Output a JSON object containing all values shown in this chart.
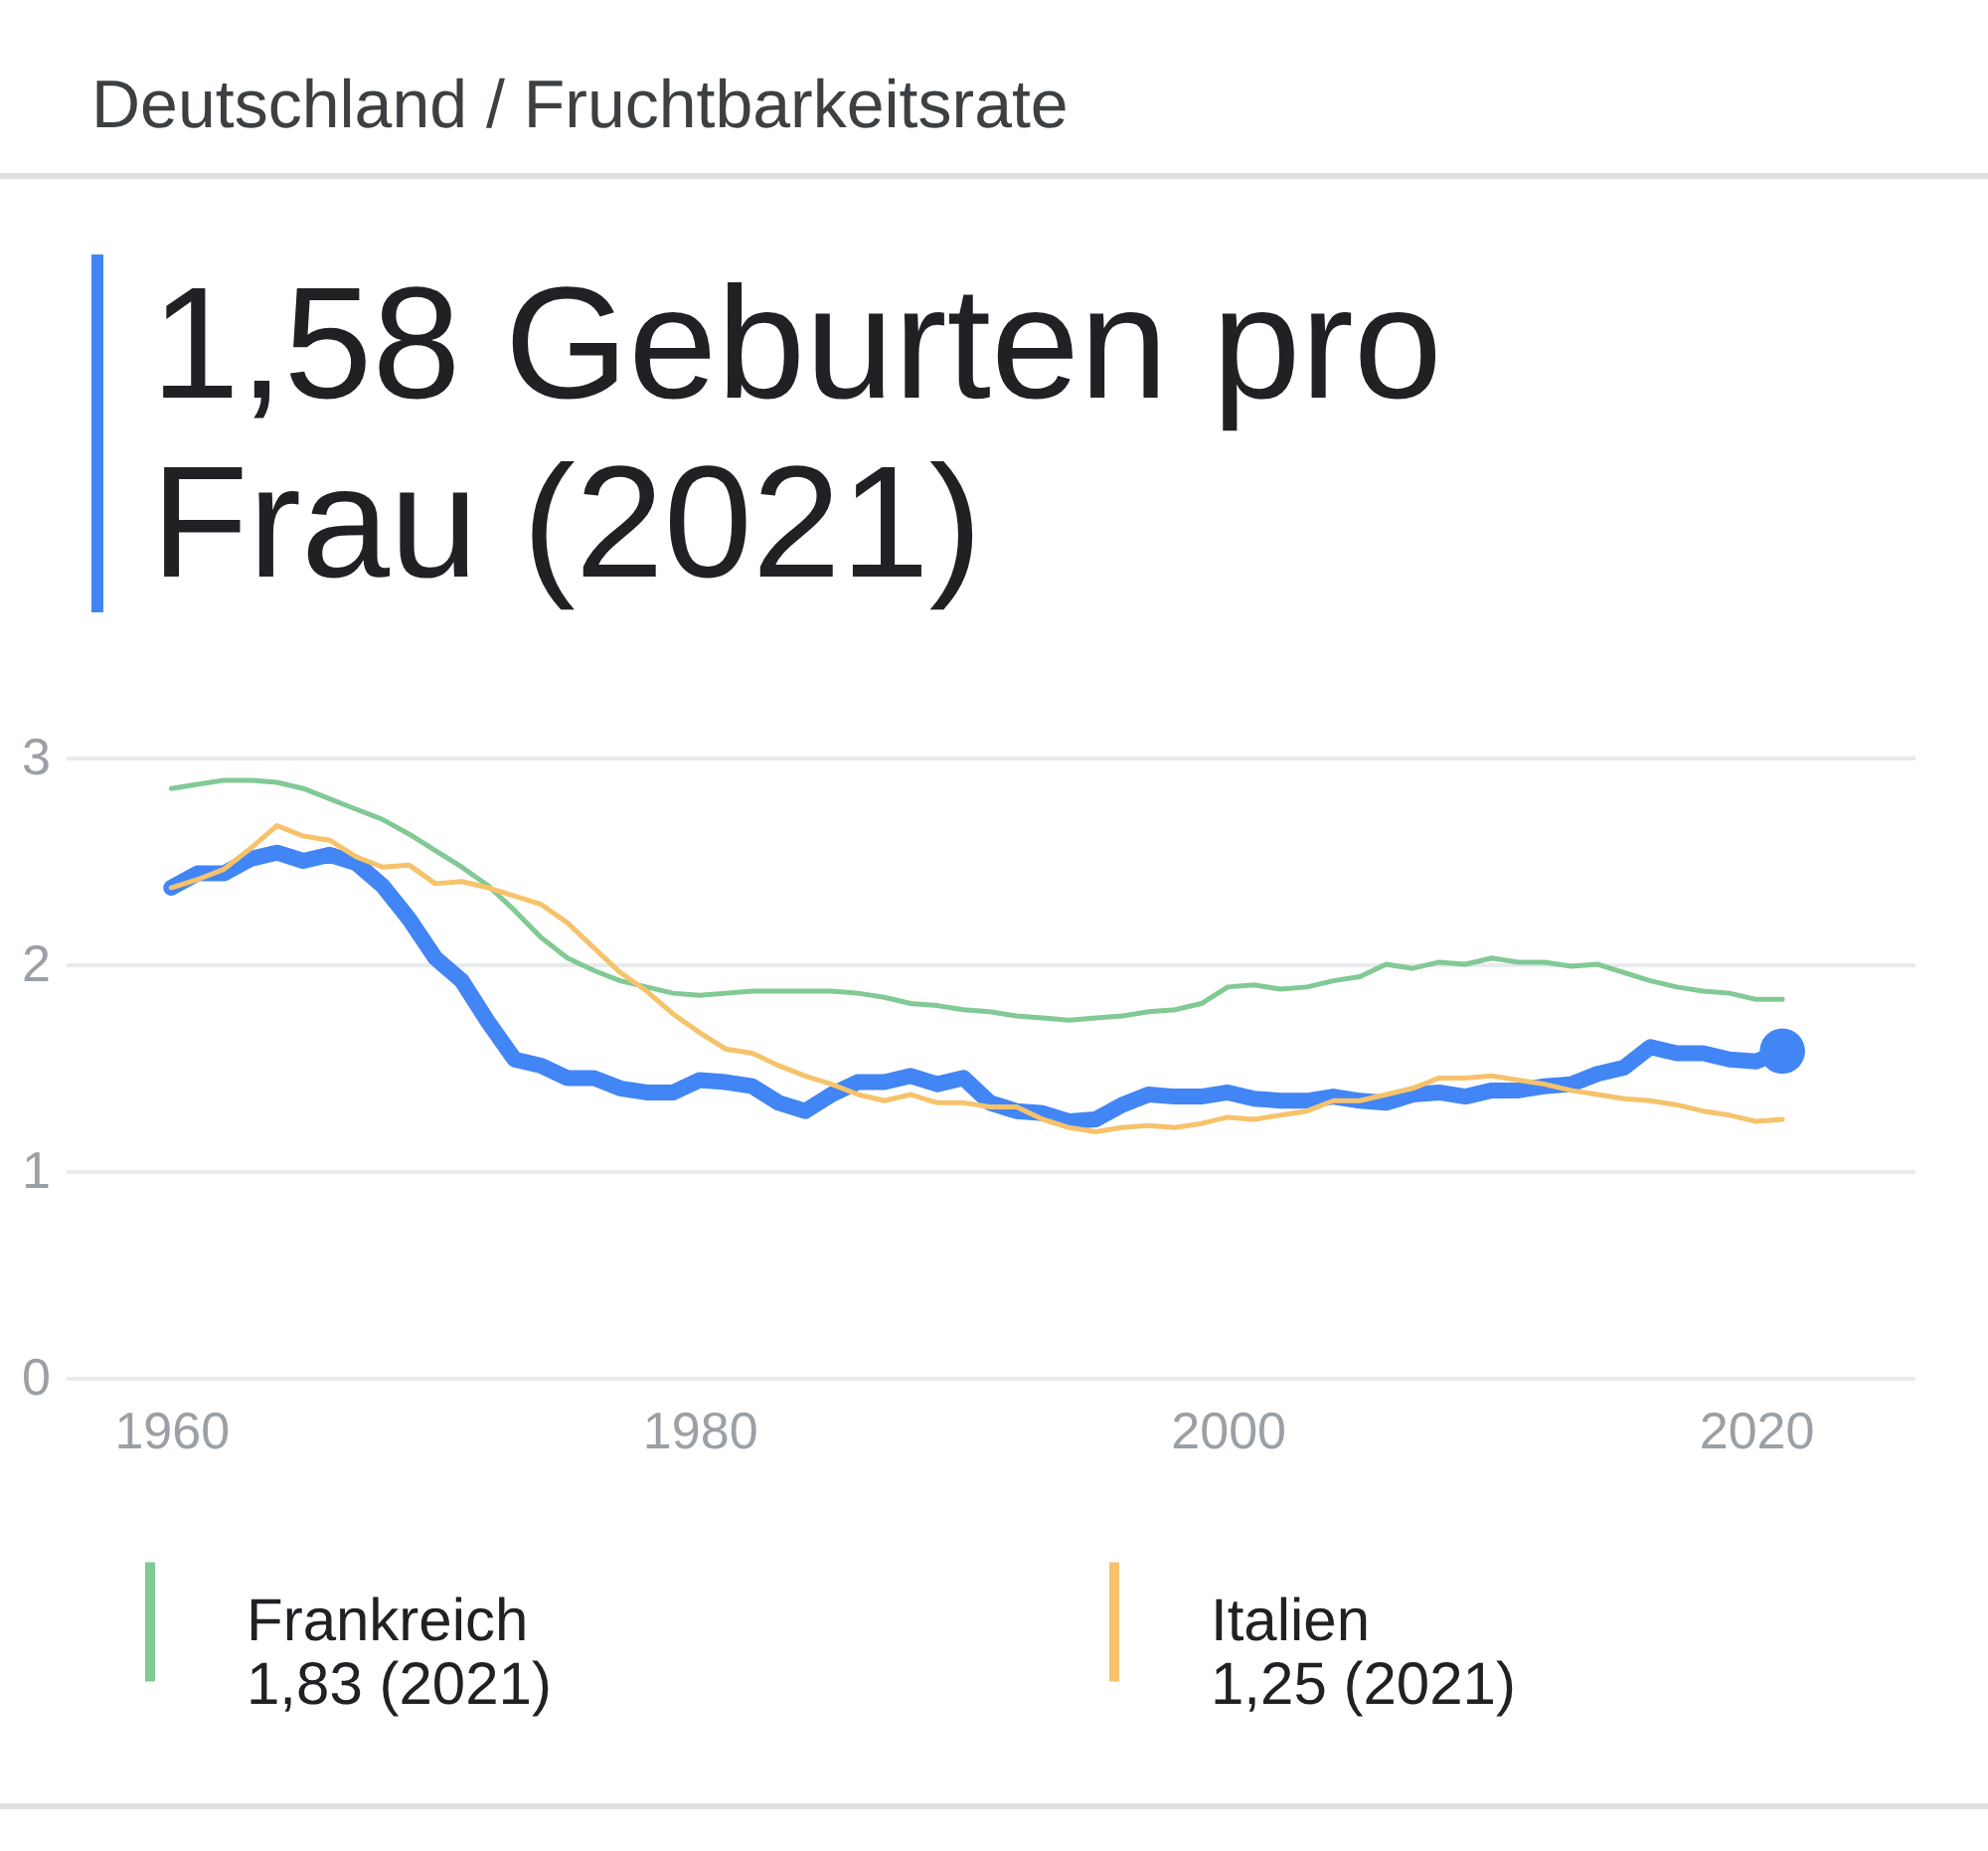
{
  "chart_data": {
    "type": "line",
    "title": "Deutschland / Fruchtbarkeitsrate",
    "subtitle": "1,58 Geburten pro Frau (2021)",
    "annotations": [
      "1,83 (2021)",
      "1,25 (2021)"
    ],
    "x": [
      1960,
      1961,
      1962,
      1963,
      1964,
      1965,
      1966,
      1967,
      1968,
      1969,
      1970,
      1971,
      1972,
      1973,
      1974,
      1975,
      1976,
      1977,
      1978,
      1979,
      1980,
      1981,
      1982,
      1983,
      1984,
      1985,
      1986,
      1987,
      1988,
      1989,
      1990,
      1991,
      1992,
      1993,
      1994,
      1995,
      1996,
      1997,
      1998,
      1999,
      2000,
      2001,
      2002,
      2003,
      2004,
      2005,
      2006,
      2007,
      2008,
      2009,
      2010,
      2011,
      2012,
      2013,
      2014,
      2015,
      2016,
      2017,
      2018,
      2019,
      2020,
      2021
    ],
    "series": [
      {
        "color": "#4285f4",
        "values": [
          2.37,
          2.44,
          2.44,
          2.51,
          2.54,
          2.5,
          2.53,
          2.49,
          2.38,
          2.22,
          2.03,
          1.92,
          1.72,
          1.54,
          1.51,
          1.45,
          1.45,
          1.4,
          1.38,
          1.38,
          1.44,
          1.43,
          1.41,
          1.33,
          1.29,
          1.37,
          1.43,
          1.43,
          1.46,
          1.42,
          1.45,
          1.33,
          1.29,
          1.28,
          1.24,
          1.25,
          1.32,
          1.37,
          1.36,
          1.36,
          1.38,
          1.35,
          1.34,
          1.34,
          1.36,
          1.34,
          1.33,
          1.37,
          1.38,
          1.36,
          1.39,
          1.39,
          1.41,
          1.42,
          1.47,
          1.5,
          1.6,
          1.57,
          1.57,
          1.54,
          1.53,
          1.58
        ]
      },
      {
        "name": "Frankreich",
        "color": "#81c995",
        "values": [
          2.85,
          2.87,
          2.89,
          2.89,
          2.88,
          2.85,
          2.8,
          2.75,
          2.7,
          2.63,
          2.55,
          2.47,
          2.38,
          2.26,
          2.13,
          2.03,
          1.97,
          1.92,
          1.89,
          1.86,
          1.85,
          1.86,
          1.87,
          1.87,
          1.87,
          1.87,
          1.86,
          1.84,
          1.81,
          1.8,
          1.78,
          1.77,
          1.75,
          1.74,
          1.73,
          1.74,
          1.75,
          1.77,
          1.78,
          1.81,
          1.89,
          1.9,
          1.88,
          1.89,
          1.92,
          1.94,
          2.0,
          1.98,
          2.01,
          2.0,
          2.03,
          2.01,
          2.01,
          1.99,
          2.0,
          1.96,
          1.92,
          1.89,
          1.87,
          1.86,
          1.83,
          1.83
        ]
      },
      {
        "name": "Italien",
        "color": "#f6c26b",
        "values": [
          2.37,
          2.41,
          2.46,
          2.56,
          2.67,
          2.62,
          2.6,
          2.52,
          2.47,
          2.48,
          2.39,
          2.4,
          2.37,
          2.33,
          2.29,
          2.2,
          2.08,
          1.96,
          1.87,
          1.76,
          1.67,
          1.59,
          1.57,
          1.51,
          1.46,
          1.42,
          1.37,
          1.34,
          1.37,
          1.33,
          1.33,
          1.31,
          1.31,
          1.25,
          1.21,
          1.19,
          1.21,
          1.22,
          1.21,
          1.23,
          1.26,
          1.25,
          1.27,
          1.29,
          1.34,
          1.34,
          1.37,
          1.4,
          1.45,
          1.45,
          1.46,
          1.44,
          1.42,
          1.39,
          1.37,
          1.35,
          1.34,
          1.32,
          1.29,
          1.27,
          1.24,
          1.25
        ]
      }
    ],
    "xlim": [
      1956,
      2026
    ],
    "xticks": [
      1960,
      1980,
      2000,
      2020
    ],
    "ylim": [
      0,
      3
    ],
    "yticks": [
      0,
      1,
      2,
      3
    ],
    "grid": "y",
    "legend": "bottom"
  }
}
